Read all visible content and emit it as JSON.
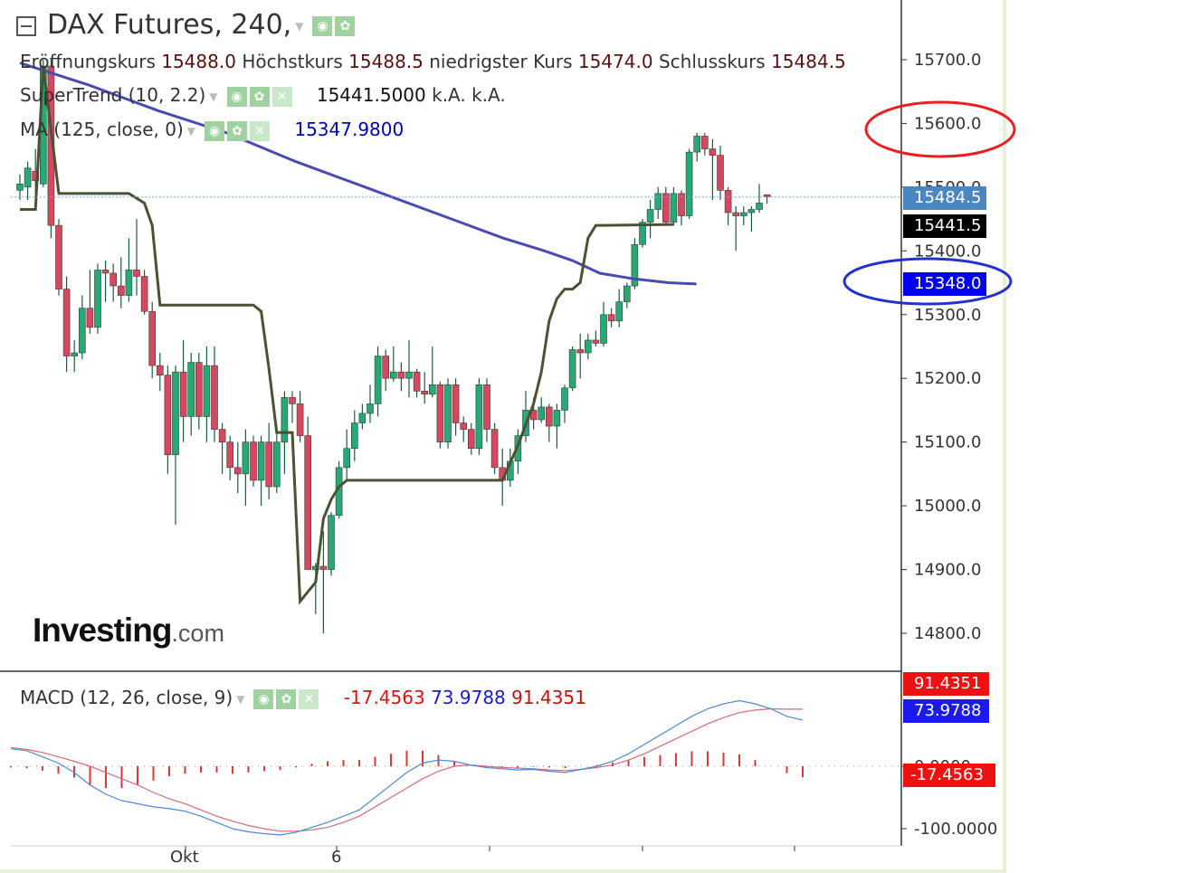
{
  "header": {
    "title": "DAX Futures, 240,",
    "ohlc": [
      {
        "label": "Eröffnungskurs",
        "value": "15488.0"
      },
      {
        "label": "Höchstkurs",
        "value": "15488.5"
      },
      {
        "label": "niedrigster Kurs",
        "value": "15474.0"
      },
      {
        "label": "Schlusskurs",
        "value": "15484.5"
      }
    ],
    "supertrend": {
      "label": "SuperTrend (10, 2.2)",
      "value": "15441.5000",
      "na1": "k.A.",
      "na2": "k.A."
    },
    "ma": {
      "label": "MA (125, close, 0)",
      "value": "15347.9800"
    },
    "macd": {
      "label": "MACD (12, 26, close, 9)",
      "hist": "-17.4563",
      "macd": "73.9788",
      "signal": "91.4351"
    }
  },
  "price_labels": {
    "last": "15484.5",
    "supertrend": "15441.5",
    "ma": "15348.0"
  },
  "macd_labels": {
    "signal": "91.4351",
    "macd": "73.9788",
    "hist": "-17.4563"
  },
  "logo": {
    "main": "Investing",
    "suffix": ".com"
  },
  "colors": {
    "up": "#26a975",
    "down": "#d9475f",
    "supertrend": "#4a5234",
    "ma": "#4a4ab3",
    "last_label": "#4a86c0",
    "ma_label": "#0000ee",
    "annot_red": "#e8201f",
    "annot_blue": "#2233cc",
    "macd_line": "#4b8ad6",
    "signal_line": "#d46a7a",
    "hist": "#d63a3a"
  },
  "chart_data": [
    {
      "type": "candlestick",
      "title": "DAX Futures, 240,",
      "y_ticks": [
        14800,
        14900,
        15000,
        15100,
        15200,
        15300,
        15400,
        15500,
        15600,
        15700
      ],
      "y_tick_labels": [
        "14800.0",
        "14900.0",
        "15000.0",
        "15100.0",
        "15200.0",
        "15300.0",
        "15400.0",
        "15500.0",
        "15600.0",
        "15700.0"
      ],
      "x_labels": [
        {
          "index": 11,
          "label": "Okt"
        },
        {
          "index": 21,
          "label": "6"
        }
      ],
      "ylim": [
        14745,
        15785
      ],
      "candles": [
        [
          15495,
          15520,
          15480,
          15505
        ],
        [
          15500,
          15540,
          15480,
          15530
        ],
        [
          15525,
          15560,
          15470,
          15510
        ],
        [
          15505,
          15700,
          15500,
          15690
        ],
        [
          15690,
          15700,
          15420,
          15440
        ],
        [
          15440,
          15450,
          15330,
          15340
        ],
        [
          15340,
          15360,
          15210,
          15235
        ],
        [
          15235,
          15260,
          15210,
          15240
        ],
        [
          15240,
          15330,
          15230,
          15310
        ],
        [
          15310,
          15370,
          15270,
          15280
        ],
        [
          15280,
          15380,
          15270,
          15370
        ],
        [
          15370,
          15385,
          15320,
          15365
        ],
        [
          15365,
          15380,
          15320,
          15345
        ],
        [
          15345,
          15390,
          15310,
          15330
        ],
        [
          15330,
          15420,
          15320,
          15370
        ],
        [
          15370,
          15450,
          15330,
          15360
        ],
        [
          15360,
          15370,
          15300,
          15305
        ],
        [
          15305,
          15320,
          15200,
          15220
        ],
        [
          15220,
          15240,
          15180,
          15205
        ],
        [
          15205,
          15220,
          15050,
          15080
        ],
        [
          15080,
          15220,
          14970,
          15210
        ],
        [
          15210,
          15260,
          15100,
          15140
        ],
        [
          15140,
          15240,
          15110,
          15225
        ],
        [
          15225,
          15240,
          15120,
          15140
        ],
        [
          15140,
          15250,
          15100,
          15220
        ],
        [
          15220,
          15250,
          15100,
          15120
        ],
        [
          15120,
          15130,
          15050,
          15100
        ],
        [
          15100,
          15110,
          15040,
          15060
        ],
        [
          15060,
          15100,
          15020,
          15050
        ],
        [
          15050,
          15120,
          15000,
          15100
        ],
        [
          15100,
          15110,
          15030,
          15040
        ],
        [
          15040,
          15110,
          15000,
          15100
        ],
        [
          15100,
          15130,
          15010,
          15030
        ],
        [
          15030,
          15120,
          15020,
          15100
        ],
        [
          15100,
          15180,
          15050,
          15170
        ],
        [
          15170,
          15180,
          15130,
          15160
        ],
        [
          15160,
          15180,
          15100,
          15110
        ],
        [
          15110,
          15140,
          14900,
          14900
        ],
        [
          14900,
          14910,
          14830,
          14905
        ],
        [
          14905,
          14960,
          14800,
          14900
        ],
        [
          14900,
          14990,
          14890,
          14985
        ],
        [
          14985,
          15070,
          14980,
          15060
        ],
        [
          15060,
          15120,
          15040,
          15090
        ],
        [
          15090,
          15150,
          15070,
          15130
        ],
        [
          15130,
          15160,
          15120,
          15145
        ],
        [
          15145,
          15190,
          15130,
          15160
        ],
        [
          15160,
          15250,
          15140,
          15235
        ],
        [
          15235,
          15245,
          15180,
          15200
        ],
        [
          15200,
          15250,
          15195,
          15210
        ],
        [
          15210,
          15225,
          15180,
          15200
        ],
        [
          15200,
          15260,
          15170,
          15210
        ],
        [
          15210,
          15215,
          15170,
          15180
        ],
        [
          15180,
          15210,
          15160,
          15175
        ],
        [
          15175,
          15250,
          15170,
          15190
        ],
        [
          15190,
          15195,
          15090,
          15100
        ],
        [
          15100,
          15200,
          15090,
          15190
        ],
        [
          15190,
          15200,
          15110,
          15130
        ],
        [
          15130,
          15140,
          15100,
          15120
        ],
        [
          15120,
          15130,
          15080,
          15090
        ],
        [
          15090,
          15200,
          15080,
          15190
        ],
        [
          15190,
          15200,
          15100,
          15120
        ],
        [
          15120,
          15130,
          15050,
          15060
        ],
        [
          15060,
          15090,
          15000,
          15040
        ],
        [
          15040,
          15090,
          15030,
          15070
        ],
        [
          15070,
          15120,
          15050,
          15110
        ],
        [
          15110,
          15180,
          15100,
          15150
        ],
        [
          15150,
          15170,
          15120,
          15135
        ],
        [
          15135,
          15170,
          15130,
          15155
        ],
        [
          15155,
          15160,
          15100,
          15125
        ],
        [
          15125,
          15160,
          15090,
          15150
        ],
        [
          15150,
          15190,
          15130,
          15185
        ],
        [
          15185,
          15250,
          15180,
          15245
        ],
        [
          15245,
          15270,
          15200,
          15240
        ],
        [
          15240,
          15270,
          15230,
          15260
        ],
        [
          15260,
          15275,
          15250,
          15255
        ],
        [
          15255,
          15320,
          15250,
          15300
        ],
        [
          15300,
          15310,
          15280,
          15290
        ],
        [
          15290,
          15340,
          15280,
          15320
        ],
        [
          15320,
          15350,
          15310,
          15345
        ],
        [
          15345,
          15420,
          15340,
          15410
        ],
        [
          15410,
          15450,
          15405,
          15445
        ],
        [
          15445,
          15480,
          15420,
          15465
        ],
        [
          15465,
          15500,
          15450,
          15490
        ],
        [
          15490,
          15500,
          15440,
          15445
        ],
        [
          15445,
          15500,
          15440,
          15490
        ],
        [
          15490,
          15495,
          15440,
          15455
        ],
        [
          15455,
          15560,
          15450,
          15555
        ],
        [
          15555,
          15585,
          15540,
          15580
        ],
        [
          15580,
          15585,
          15550,
          15560
        ],
        [
          15560,
          15575,
          15480,
          15550
        ],
        [
          15550,
          15565,
          15480,
          15495
        ],
        [
          15495,
          15500,
          15440,
          15460
        ],
        [
          15460,
          15470,
          15400,
          15455
        ],
        [
          15455,
          15470,
          15440,
          15460
        ],
        [
          15460,
          15470,
          15430,
          15465
        ],
        [
          15465,
          15505,
          15460,
          15475
        ],
        [
          15488,
          15488.5,
          15474,
          15484.5
        ]
      ],
      "supertrend": [
        [
          0,
          15465
        ],
        [
          2,
          15465
        ],
        [
          3,
          15690
        ],
        [
          4,
          15590
        ],
        [
          5,
          15490
        ],
        [
          6,
          15490
        ],
        [
          14,
          15490
        ],
        [
          16,
          15475
        ],
        [
          17,
          15440
        ],
        [
          18,
          15315
        ],
        [
          29,
          15315
        ],
        [
          30,
          15315
        ],
        [
          31,
          15305
        ],
        [
          32,
          15215
        ],
        [
          33,
          15115
        ],
        [
          35,
          15115
        ],
        [
          36,
          14850
        ],
        [
          38,
          14880
        ],
        [
          39,
          14980
        ],
        [
          40,
          15010
        ],
        [
          41,
          15030
        ],
        [
          42,
          15040
        ],
        [
          61,
          15040
        ],
        [
          62,
          15040
        ],
        [
          64,
          15095
        ],
        [
          66,
          15160
        ],
        [
          67,
          15210
        ],
        [
          68,
          15290
        ],
        [
          69,
          15325
        ],
        [
          70,
          15340
        ],
        [
          71,
          15340
        ],
        [
          72,
          15350
        ],
        [
          73,
          15420
        ],
        [
          74,
          15440
        ],
        [
          75,
          15440
        ],
        [
          84,
          15441.5
        ]
      ],
      "ma125": [
        [
          0,
          15695
        ],
        [
          10,
          15660
        ],
        [
          20,
          15620
        ],
        [
          30,
          15585
        ],
        [
          40,
          15540
        ],
        [
          50,
          15500
        ],
        [
          60,
          15460
        ],
        [
          70,
          15420
        ],
        [
          76,
          15400
        ],
        [
          80,
          15385
        ],
        [
          84,
          15365
        ],
        [
          89,
          15356
        ],
        [
          94,
          15350
        ],
        [
          98,
          15348
        ]
      ],
      "last_price": 15484.5
    },
    {
      "type": "line",
      "title": "MACD (12, 26, close, 9)",
      "y_tick_labels": [
        "-100.0000",
        "0.0000"
      ],
      "ylim": [
        -112,
        118
      ],
      "series": [
        {
          "name": "MACD",
          "values": [
            28,
            25,
            15,
            5,
            -10,
            -30,
            -45,
            -55,
            -60,
            -65,
            -68,
            -72,
            -80,
            -90,
            -100,
            -105,
            -108,
            -110,
            -106,
            -98,
            -90,
            -80,
            -70,
            -50,
            -30,
            -10,
            5,
            10,
            8,
            2,
            -2,
            -4,
            -6,
            -5,
            -8,
            -10,
            -5,
            0,
            8,
            20,
            35,
            50,
            65,
            80,
            92,
            100,
            105,
            100,
            92,
            80,
            74
          ]
        },
        {
          "name": "Signal",
          "values": [
            30,
            27,
            22,
            15,
            8,
            0,
            -10,
            -20,
            -30,
            -42,
            -52,
            -60,
            -70,
            -80,
            -88,
            -95,
            -100,
            -104,
            -104,
            -102,
            -98,
            -90,
            -80,
            -65,
            -50,
            -35,
            -20,
            -8,
            0,
            2,
            0,
            -2,
            -3,
            -4,
            -6,
            -7,
            -5,
            -2,
            2,
            10,
            20,
            32,
            44,
            56,
            68,
            78,
            86,
            90,
            92,
            91.4,
            91.4
          ]
        },
        {
          "name": "Histogram",
          "values": [
            -2,
            -3,
            -7,
            -12,
            -18,
            -30,
            -35,
            -35,
            -30,
            -23,
            -16,
            -12,
            -10,
            -10,
            -12,
            -10,
            -8,
            -6,
            -2,
            4,
            8,
            10,
            10,
            15,
            20,
            25,
            25,
            18,
            8,
            0,
            -2,
            -2,
            -3,
            -1,
            -2,
            -3,
            0,
            2,
            6,
            10,
            15,
            18,
            21,
            24,
            24,
            22,
            19,
            10,
            0,
            -11,
            -17.4563
          ]
        }
      ]
    }
  ]
}
